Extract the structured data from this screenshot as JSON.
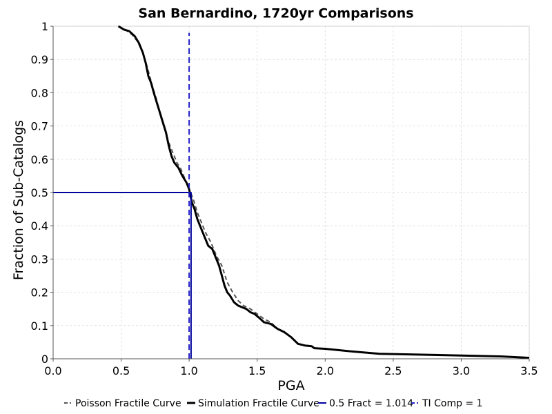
{
  "chart_data": {
    "type": "line",
    "title": "San Bernardino, 1720yr Comparisons",
    "xlabel": "PGA",
    "ylabel": "Fraction of Sub-Catalogs",
    "xlim": [
      0.0,
      3.5
    ],
    "ylim": [
      0,
      1
    ],
    "x_ticks": [
      "0.0",
      "0.5",
      "1.0",
      "1.5",
      "2.0",
      "2.5",
      "3.0",
      "3.5"
    ],
    "y_ticks": [
      "0",
      "0.1",
      "0.2",
      "0.3",
      "0.4",
      "0.5",
      "0.6",
      "0.7",
      "0.8",
      "0.9",
      "1"
    ],
    "x_tick_values": [
      0,
      0.5,
      1.0,
      1.5,
      2.0,
      2.5,
      3.0,
      3.5
    ],
    "y_tick_values": [
      0,
      0.1,
      0.2,
      0.3,
      0.4,
      0.5,
      0.6,
      0.7,
      0.8,
      0.9,
      1.0
    ],
    "grid": true,
    "legend_position": "bottom",
    "series": [
      {
        "name": "Poisson Fractile Curve",
        "color": "#555555",
        "style": "dashed",
        "x": [
          0.48,
          0.53,
          0.58,
          0.62,
          0.66,
          0.69,
          0.71,
          0.73,
          0.76,
          0.79,
          0.82,
          0.85,
          0.88,
          0.91,
          0.94,
          0.97,
          1.0,
          1.03,
          1.06,
          1.09,
          1.12,
          1.16,
          1.2,
          1.24,
          1.28,
          1.32,
          1.36,
          1.4,
          1.45,
          1.5,
          1.55,
          1.6,
          1.65
        ],
        "y": [
          1.0,
          0.99,
          0.975,
          0.955,
          0.92,
          0.88,
          0.85,
          0.82,
          0.78,
          0.73,
          0.69,
          0.65,
          0.62,
          0.59,
          0.57,
          0.54,
          0.51,
          0.48,
          0.44,
          0.41,
          0.38,
          0.35,
          0.31,
          0.28,
          0.23,
          0.2,
          0.175,
          0.16,
          0.15,
          0.135,
          0.12,
          0.11,
          0.09
        ]
      },
      {
        "name": "Simulation Fractile Curve",
        "color": "#000000",
        "style": "solid",
        "x": [
          0.48,
          0.52,
          0.56,
          0.6,
          0.63,
          0.66,
          0.68,
          0.7,
          0.72,
          0.74,
          0.77,
          0.8,
          0.83,
          0.85,
          0.87,
          0.89,
          0.92,
          0.95,
          0.98,
          1.0,
          1.02,
          1.04,
          1.06,
          1.08,
          1.11,
          1.14,
          1.17,
          1.2,
          1.22,
          1.24,
          1.26,
          1.28,
          1.3,
          1.33,
          1.36,
          1.39,
          1.42,
          1.45,
          1.48,
          1.51,
          1.55,
          1.6,
          1.65,
          1.7,
          1.75,
          1.8,
          1.85,
          1.9,
          1.92,
          2.0,
          2.2,
          2.4,
          3.0,
          3.3,
          3.5
        ],
        "y": [
          1.0,
          0.99,
          0.985,
          0.97,
          0.95,
          0.92,
          0.89,
          0.85,
          0.83,
          0.8,
          0.76,
          0.72,
          0.68,
          0.64,
          0.61,
          0.59,
          0.575,
          0.55,
          0.53,
          0.51,
          0.47,
          0.45,
          0.42,
          0.4,
          0.37,
          0.34,
          0.33,
          0.3,
          0.28,
          0.25,
          0.22,
          0.2,
          0.19,
          0.17,
          0.16,
          0.155,
          0.15,
          0.14,
          0.135,
          0.125,
          0.11,
          0.105,
          0.09,
          0.08,
          0.065,
          0.045,
          0.04,
          0.038,
          0.032,
          0.03,
          0.022,
          0.015,
          0.01,
          0.007,
          0.003
        ]
      },
      {
        "name": "0.5 Fract = 1.014",
        "color": "#00009b",
        "style": "solid",
        "x": [
          0.0,
          1.014,
          1.014
        ],
        "y": [
          0.5,
          0.5,
          0.0
        ]
      },
      {
        "name": "TI Comp = 1",
        "color": "#2020c8",
        "style": "dashed",
        "x": [
          1.0,
          1.0
        ],
        "y": [
          0.0,
          0.98
        ]
      }
    ]
  }
}
